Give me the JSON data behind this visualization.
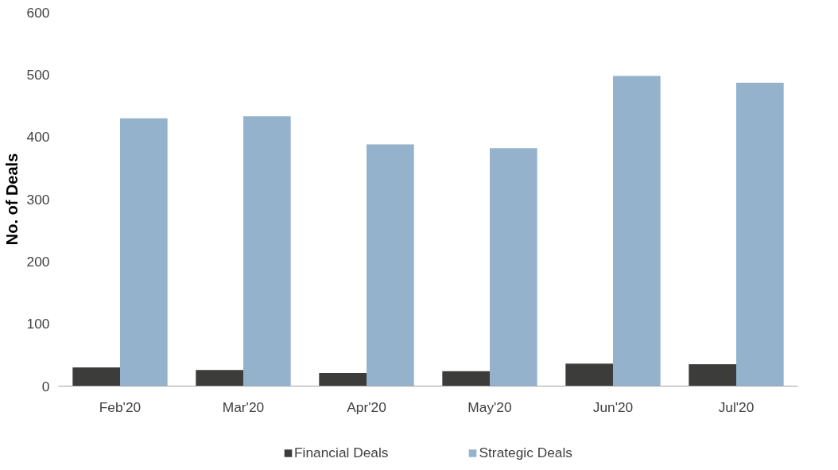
{
  "chart_data": {
    "type": "bar",
    "ylabel": "No. of Deals",
    "categories": [
      "Feb'20",
      "Mar'20",
      "Apr'20",
      "May'20",
      "Jun'20",
      "Jul'20"
    ],
    "series": [
      {
        "name": "Financial Deals",
        "color": "#3c3c3a",
        "values": [
          30,
          26,
          21,
          24,
          36,
          35
        ]
      },
      {
        "name": "Strategic Deals",
        "color": "#95b2cd",
        "values": [
          430,
          433,
          388,
          382,
          498,
          487
        ]
      }
    ],
    "ylim": [
      0,
      600
    ],
    "yticks": [
      0,
      100,
      200,
      300,
      400,
      500,
      600
    ],
    "grid": false,
    "legend": "bottom"
  }
}
